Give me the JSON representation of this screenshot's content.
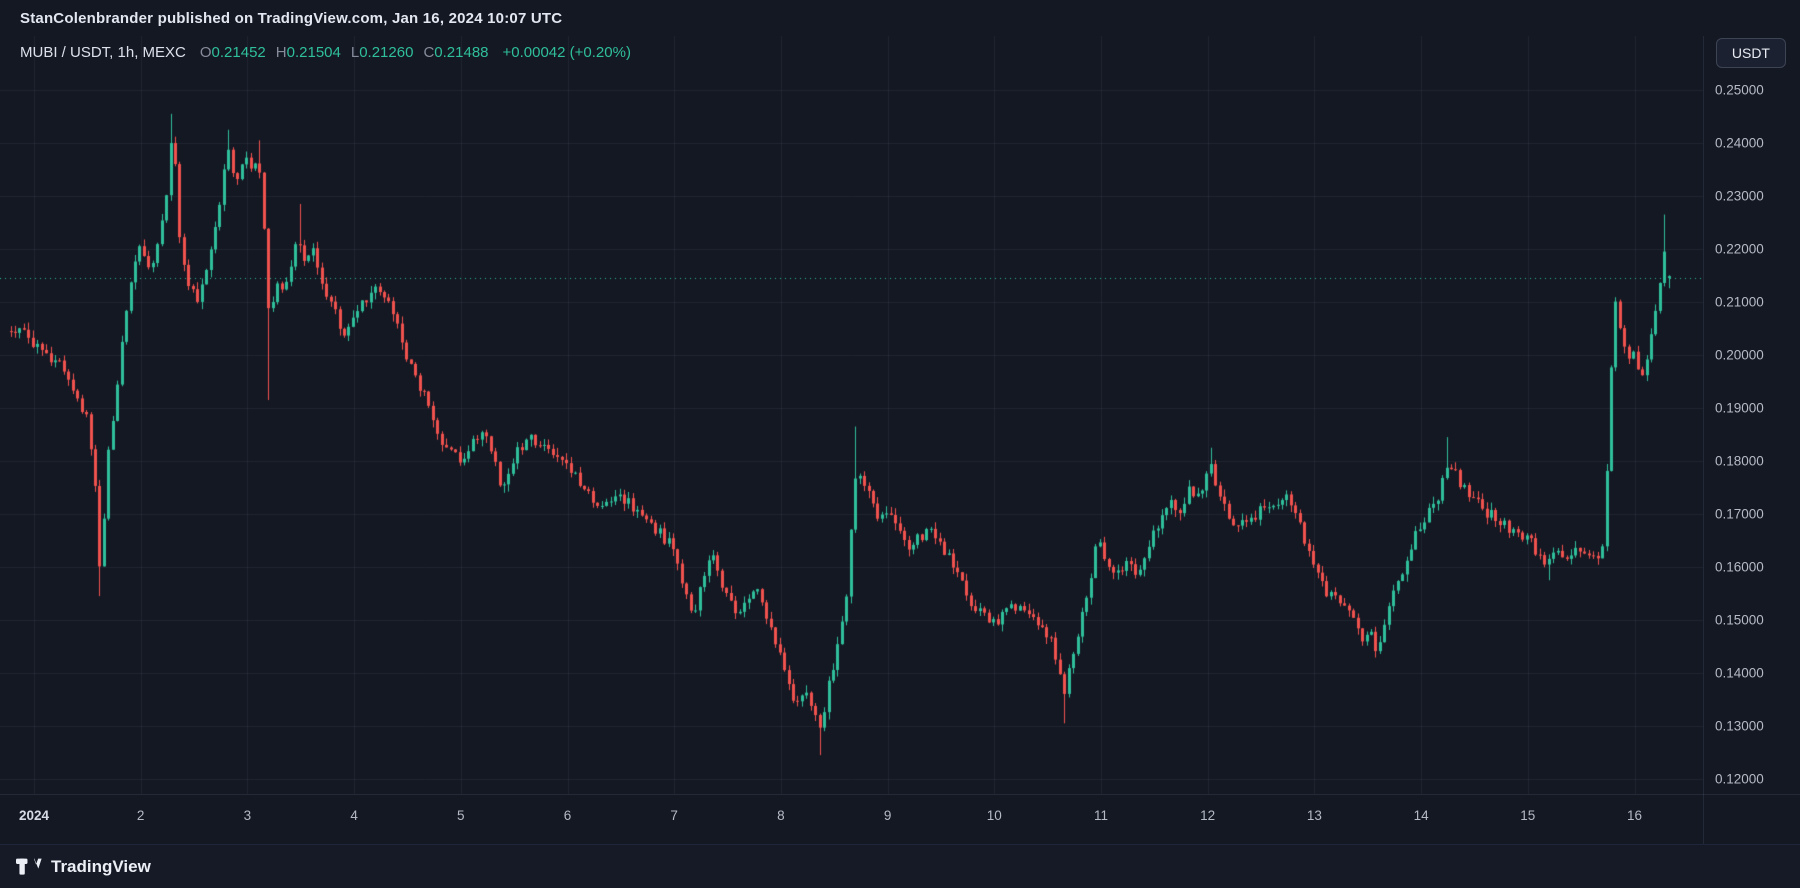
{
  "header": {
    "published_line": "StanColenbrander published on TradingView.com, Jan 16, 2024 10:07 UTC"
  },
  "legend": {
    "symbol": "MUBI / USDT, 1h, MEXC",
    "open_label": "O",
    "open_value": "0.21452",
    "high_label": "H",
    "high_value": "0.21504",
    "low_label": "L",
    "low_value": "0.21260",
    "close_label": "C",
    "close_value": "0.21488",
    "change": "+0.00042 (+0.20%)"
  },
  "axis": {
    "currency_button": "USDT",
    "price_labels": [
      "0.25000",
      "0.24000",
      "0.23000",
      "0.22000",
      "0.21000",
      "0.20000",
      "0.19000",
      "0.18000",
      "0.17000",
      "0.16000",
      "0.15000",
      "0.14000",
      "0.13000",
      "0.12000"
    ],
    "time_labels": [
      {
        "label": "2024",
        "day": 1,
        "year": true
      },
      {
        "label": "2",
        "day": 2
      },
      {
        "label": "3",
        "day": 3
      },
      {
        "label": "4",
        "day": 4
      },
      {
        "label": "5",
        "day": 5
      },
      {
        "label": "6",
        "day": 6
      },
      {
        "label": "7",
        "day": 7
      },
      {
        "label": "8",
        "day": 8
      },
      {
        "label": "9",
        "day": 9
      },
      {
        "label": "10",
        "day": 10
      },
      {
        "label": "11",
        "day": 11
      },
      {
        "label": "12",
        "day": 12
      },
      {
        "label": "13",
        "day": 13
      },
      {
        "label": "14",
        "day": 14
      },
      {
        "label": "15",
        "day": 15
      },
      {
        "label": "16",
        "day": 16
      }
    ]
  },
  "footer": {
    "brand": "TradingView"
  },
  "colors": {
    "background": "#141823",
    "up": "#2fbf9b",
    "down": "#f0524e",
    "grid": "rgba(134,149,176,0.10)",
    "axis_text": "#b4bac6",
    "last_price_line": "#2fbf9b"
  },
  "chart_data": {
    "type": "candlestick",
    "title": "MUBI / USDT, 1h, MEXC",
    "symbol": "MUBI/USDT",
    "interval": "1h",
    "exchange": "MEXC",
    "ohlc_current": {
      "open": 0.21452,
      "high": 0.21504,
      "low": 0.2126,
      "close": 0.21488
    },
    "change": 0.00042,
    "change_pct": 0.2,
    "price_axis_range": [
      0.12,
      0.25
    ],
    "price_grid_step": 0.01,
    "x_days": [
      0.78,
      16.35
    ],
    "x_label_days": [
      1,
      2,
      3,
      4,
      5,
      6,
      7,
      8,
      9,
      10,
      11,
      12,
      13,
      14,
      15,
      16
    ],
    "last_price_line": 0.2145,
    "grid": true,
    "legend_position": "top-left",
    "waypoints": [
      [
        0.8,
        0.2045
      ],
      [
        0.95,
        0.2035
      ],
      [
        1.1,
        0.1995
      ],
      [
        1.25,
        0.1985
      ],
      [
        1.4,
        0.1925
      ],
      [
        1.5,
        0.1875
      ],
      [
        1.57,
        0.1765
      ],
      [
        1.62,
        0.1585
      ],
      [
        1.7,
        0.1825
      ],
      [
        1.8,
        0.1985
      ],
      [
        1.9,
        0.2145
      ],
      [
        2.0,
        0.2205
      ],
      [
        2.08,
        0.2155
      ],
      [
        2.17,
        0.2225
      ],
      [
        2.25,
        0.2305
      ],
      [
        2.3,
        0.2445
      ],
      [
        2.36,
        0.2225
      ],
      [
        2.45,
        0.2125
      ],
      [
        2.55,
        0.2105
      ],
      [
        2.65,
        0.2185
      ],
      [
        2.75,
        0.2305
      ],
      [
        2.82,
        0.2385
      ],
      [
        2.9,
        0.2325
      ],
      [
        2.97,
        0.2375
      ],
      [
        3.05,
        0.2345
      ],
      [
        3.1,
        0.2395
      ],
      [
        3.16,
        0.2215
      ],
      [
        3.2,
        0.2065
      ],
      [
        3.28,
        0.2125
      ],
      [
        3.38,
        0.2145
      ],
      [
        3.46,
        0.2235
      ],
      [
        3.52,
        0.2185
      ],
      [
        3.6,
        0.2205
      ],
      [
        3.7,
        0.2125
      ],
      [
        3.8,
        0.2085
      ],
      [
        3.9,
        0.2045
      ],
      [
        4.0,
        0.2065
      ],
      [
        4.1,
        0.2105
      ],
      [
        4.2,
        0.2135
      ],
      [
        4.3,
        0.2105
      ],
      [
        4.4,
        0.2055
      ],
      [
        4.5,
        0.1985
      ],
      [
        4.6,
        0.1945
      ],
      [
        4.7,
        0.1905
      ],
      [
        4.8,
        0.1845
      ],
      [
        4.9,
        0.1815
      ],
      [
        5.0,
        0.1795
      ],
      [
        5.1,
        0.1835
      ],
      [
        5.2,
        0.1855
      ],
      [
        5.3,
        0.1805
      ],
      [
        5.38,
        0.1745
      ],
      [
        5.45,
        0.1785
      ],
      [
        5.55,
        0.1825
      ],
      [
        5.65,
        0.1845
      ],
      [
        5.75,
        0.1825
      ],
      [
        5.85,
        0.1815
      ],
      [
        6.0,
        0.1795
      ],
      [
        6.1,
        0.1765
      ],
      [
        6.2,
        0.1735
      ],
      [
        6.35,
        0.1715
      ],
      [
        6.45,
        0.1735
      ],
      [
        6.55,
        0.1725
      ],
      [
        6.7,
        0.1695
      ],
      [
        6.85,
        0.1665
      ],
      [
        7.0,
        0.1635
      ],
      [
        7.1,
        0.1555
      ],
      [
        7.18,
        0.1505
      ],
      [
        7.28,
        0.1585
      ],
      [
        7.35,
        0.1625
      ],
      [
        7.45,
        0.1565
      ],
      [
        7.55,
        0.1525
      ],
      [
        7.62,
        0.1505
      ],
      [
        7.7,
        0.1545
      ],
      [
        7.78,
        0.1565
      ],
      [
        7.88,
        0.1495
      ],
      [
        7.95,
        0.1455
      ],
      [
        8.05,
        0.1385
      ],
      [
        8.12,
        0.1335
      ],
      [
        8.2,
        0.1365
      ],
      [
        8.28,
        0.1345
      ],
      [
        8.37,
        0.1285
      ],
      [
        8.45,
        0.1385
      ],
      [
        8.55,
        0.1465
      ],
      [
        8.63,
        0.1565
      ],
      [
        8.68,
        0.1755
      ],
      [
        8.75,
        0.1775
      ],
      [
        8.82,
        0.1745
      ],
      [
        8.9,
        0.1695
      ],
      [
        9.0,
        0.1705
      ],
      [
        9.1,
        0.1665
      ],
      [
        9.2,
        0.1635
      ],
      [
        9.3,
        0.1655
      ],
      [
        9.4,
        0.1665
      ],
      [
        9.5,
        0.1645
      ],
      [
        9.6,
        0.1605
      ],
      [
        9.7,
        0.1575
      ],
      [
        9.8,
        0.1525
      ],
      [
        9.9,
        0.1505
      ],
      [
        10.0,
        0.1495
      ],
      [
        10.1,
        0.1515
      ],
      [
        10.2,
        0.1525
      ],
      [
        10.3,
        0.1505
      ],
      [
        10.4,
        0.1495
      ],
      [
        10.5,
        0.1475
      ],
      [
        10.58,
        0.1425
      ],
      [
        10.65,
        0.1365
      ],
      [
        10.72,
        0.1425
      ],
      [
        10.8,
        0.1495
      ],
      [
        10.88,
        0.1555
      ],
      [
        10.95,
        0.1645
      ],
      [
        11.0,
        0.1635
      ],
      [
        11.08,
        0.1605
      ],
      [
        11.15,
        0.1585
      ],
      [
        11.25,
        0.1615
      ],
      [
        11.32,
        0.1585
      ],
      [
        11.4,
        0.1615
      ],
      [
        11.5,
        0.1665
      ],
      [
        11.58,
        0.1705
      ],
      [
        11.65,
        0.1725
      ],
      [
        11.75,
        0.1705
      ],
      [
        11.82,
        0.1745
      ],
      [
        11.9,
        0.1725
      ],
      [
        11.97,
        0.1765
      ],
      [
        12.03,
        0.1785
      ],
      [
        12.1,
        0.1745
      ],
      [
        12.18,
        0.1695
      ],
      [
        12.25,
        0.1665
      ],
      [
        12.35,
        0.1685
      ],
      [
        12.45,
        0.1695
      ],
      [
        12.52,
        0.1725
      ],
      [
        12.6,
        0.1705
      ],
      [
        12.68,
        0.1725
      ],
      [
        12.75,
        0.1735
      ],
      [
        12.82,
        0.1705
      ],
      [
        12.9,
        0.1655
      ],
      [
        13.0,
        0.1605
      ],
      [
        13.08,
        0.1565
      ],
      [
        13.15,
        0.1545
      ],
      [
        13.25,
        0.1525
      ],
      [
        13.35,
        0.1505
      ],
      [
        13.45,
        0.1465
      ],
      [
        13.52,
        0.1485
      ],
      [
        13.58,
        0.1445
      ],
      [
        13.65,
        0.1495
      ],
      [
        13.75,
        0.1555
      ],
      [
        13.85,
        0.1605
      ],
      [
        13.95,
        0.1665
      ],
      [
        14.05,
        0.1695
      ],
      [
        14.15,
        0.1725
      ],
      [
        14.25,
        0.1795
      ],
      [
        14.32,
        0.1775
      ],
      [
        14.4,
        0.1745
      ],
      [
        14.5,
        0.1725
      ],
      [
        14.6,
        0.1705
      ],
      [
        14.7,
        0.1695
      ],
      [
        14.8,
        0.1675
      ],
      [
        14.9,
        0.1665
      ],
      [
        15.0,
        0.1655
      ],
      [
        15.08,
        0.1625
      ],
      [
        15.15,
        0.1605
      ],
      [
        15.25,
        0.1635
      ],
      [
        15.35,
        0.1615
      ],
      [
        15.45,
        0.1635
      ],
      [
        15.55,
        0.1625
      ],
      [
        15.65,
        0.1615
      ],
      [
        15.7,
        0.1635
      ],
      [
        15.74,
        0.1785
      ],
      [
        15.78,
        0.1985
      ],
      [
        15.82,
        0.2105
      ],
      [
        15.88,
        0.2045
      ],
      [
        15.95,
        0.1985
      ],
      [
        16.0,
        0.2025
      ],
      [
        16.05,
        0.1945
      ],
      [
        16.1,
        0.1975
      ],
      [
        16.15,
        0.2035
      ],
      [
        16.2,
        0.2085
      ],
      [
        16.26,
        0.2155
      ],
      [
        16.3,
        0.2225
      ],
      [
        16.35,
        0.2149
      ]
    ],
    "wick_spikes": [
      [
        1.62,
        0.1545,
        "low"
      ],
      [
        2.3,
        0.2455,
        "high"
      ],
      [
        2.82,
        0.2425,
        "high"
      ],
      [
        3.1,
        0.2405,
        "high"
      ],
      [
        3.2,
        0.1915,
        "low"
      ],
      [
        3.47,
        0.2285,
        "high"
      ],
      [
        8.37,
        0.1245,
        "low"
      ],
      [
        8.68,
        0.1865,
        "high"
      ],
      [
        10.65,
        0.1305,
        "low"
      ],
      [
        12.03,
        0.1825,
        "high"
      ],
      [
        14.25,
        0.1845,
        "high"
      ],
      [
        15.2,
        0.1575,
        "low"
      ],
      [
        16.3,
        0.2265,
        "high"
      ]
    ]
  }
}
